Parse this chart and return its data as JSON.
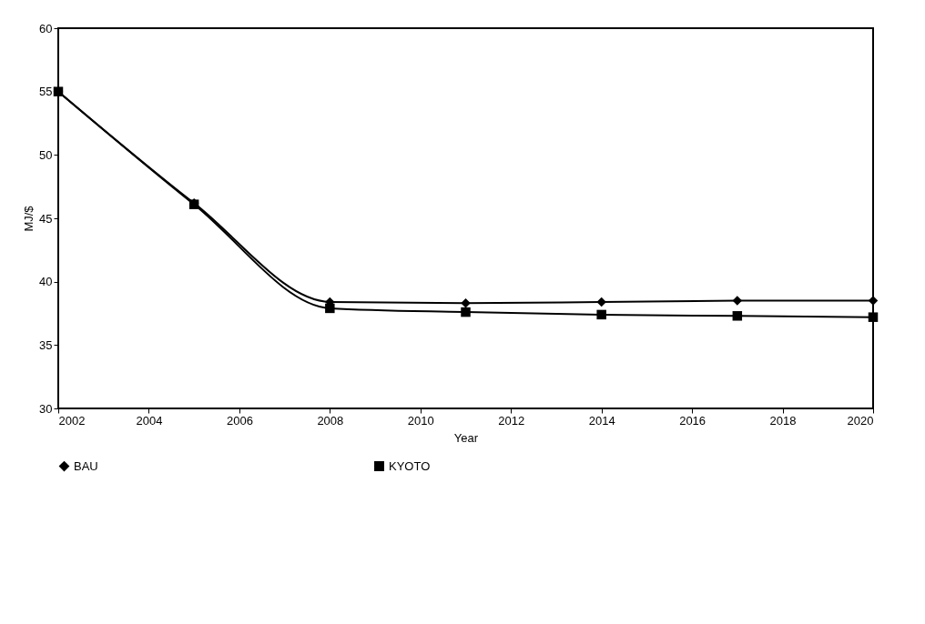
{
  "chart_data": {
    "type": "line",
    "xlabel": "Year",
    "ylabel": "MJ/$",
    "x": [
      2002,
      2005,
      2008,
      2011,
      2014,
      2017,
      2020
    ],
    "series": [
      {
        "name": "BAU",
        "color": "#000000",
        "marker": "diamond",
        "values": [
          55,
          46.2,
          38.4,
          38.3,
          38.4,
          38.5,
          38.5
        ]
      },
      {
        "name": "KYOTO",
        "color": "#000000",
        "marker": "square",
        "values": [
          55,
          46.1,
          37.9,
          37.6,
          37.4,
          37.3,
          37.2
        ]
      }
    ],
    "xlim": [
      2002,
      2020
    ],
    "xticks": [
      2002,
      2004,
      2006,
      2008,
      2010,
      2012,
      2014,
      2016,
      2018,
      2020
    ],
    "ylim": [
      30,
      60
    ],
    "yticks": [
      30,
      35,
      40,
      45,
      50,
      55,
      60
    ],
    "grid": false,
    "legend": "bottom",
    "line_style": "solid"
  }
}
